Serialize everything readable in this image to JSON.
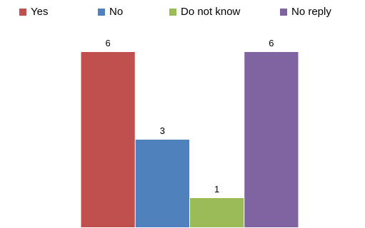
{
  "chart_data": {
    "type": "bar",
    "title": "",
    "xlabel": "",
    "ylabel": "",
    "ylim": [
      0,
      6
    ],
    "grid": false,
    "legend_position": "top",
    "categories": [
      "Yes",
      "No",
      "Do not know",
      "No reply"
    ],
    "values": [
      6,
      3,
      1,
      6
    ],
    "data_labels": [
      "6",
      "3",
      "1",
      "6"
    ],
    "colors": [
      "#c0504d",
      "#4f81bd",
      "#9bbb59",
      "#8064a2"
    ]
  }
}
